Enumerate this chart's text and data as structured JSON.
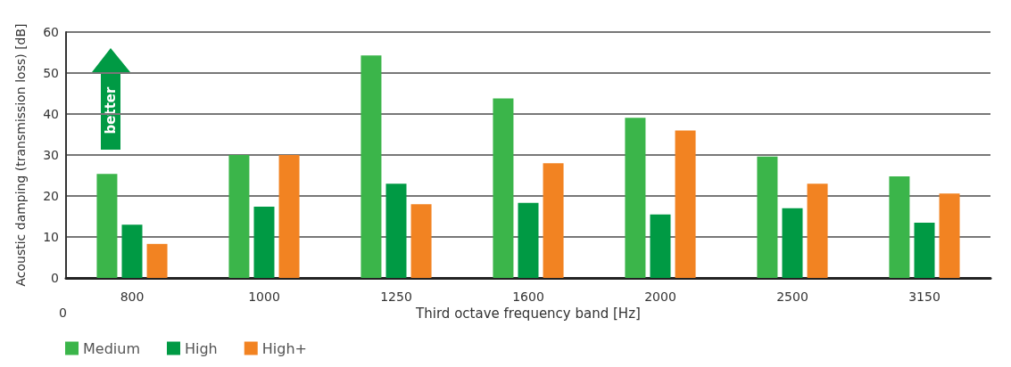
{
  "chart_data": {
    "type": "bar",
    "xlabel": "Third octave frequency band [Hz]",
    "ylabel": "Acoustic damping (transmission loss) [dB]",
    "categories": [
      "800",
      "1000",
      "1250",
      "1600",
      "2000",
      "2500",
      "3150"
    ],
    "series": [
      {
        "name": "Medium",
        "color": "#3bb54a",
        "values": [
          25.4,
          30,
          54.3,
          43.8,
          39.1,
          29.6,
          24.8
        ]
      },
      {
        "name": "High",
        "color": "#009a44",
        "values": [
          13,
          17.4,
          23,
          18.3,
          15.5,
          17,
          13.5
        ]
      },
      {
        "name": "High+",
        "color": "#f28322",
        "values": [
          8.3,
          30,
          18,
          28,
          36,
          23,
          20.6
        ]
      }
    ],
    "ylim": [
      0,
      60
    ],
    "yticks": [
      0,
      10,
      20,
      30,
      40,
      50,
      60
    ],
    "grid": "y",
    "legend": "bottom left",
    "annotations": [
      "0",
      "better"
    ]
  }
}
